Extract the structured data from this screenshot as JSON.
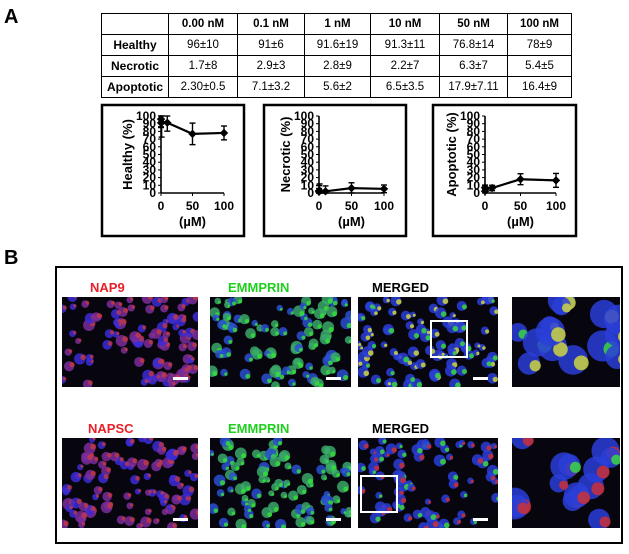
{
  "panel_a": {
    "letter": "A",
    "table": {
      "headers": [
        "",
        "0.00 nM",
        "0.1 nM",
        "1 nM",
        "10 nM",
        "50 nM",
        "100 nM"
      ],
      "rows": [
        {
          "label": "Healthy",
          "cells": [
            "96±10",
            "91±6",
            "91.6±19",
            "91.3±11",
            "76.8±14",
            "78±9"
          ]
        },
        {
          "label": "Necrotic",
          "cells": [
            "1.7±8",
            "2.9±3",
            "2.8±9",
            "2.2±7",
            "6.3±7",
            "5.4±5"
          ]
        },
        {
          "label": "Apoptotic",
          "cells": [
            "2.30±0.5",
            "7.1±3.2",
            "5.6±2",
            "6.5±3.5",
            "17.9±7.11",
            "16.4±9"
          ]
        }
      ]
    }
  },
  "chart_data": [
    {
      "type": "line",
      "ylabel": "Healthy (%)",
      "xlabel": "(µM)",
      "x": [
        0,
        0.1,
        1,
        10,
        50,
        100
      ],
      "y": [
        96,
        91,
        91.6,
        91.3,
        76.8,
        78
      ],
      "err": [
        10,
        6,
        19,
        11,
        14,
        9
      ],
      "xticks": [
        "0",
        "50",
        "100"
      ],
      "yticks": [
        "0",
        "10",
        "20",
        "30",
        "40",
        "50",
        "60",
        "70",
        "80",
        "90",
        "100"
      ],
      "xlim": [
        0,
        100
      ],
      "ylim": [
        0,
        100
      ]
    },
    {
      "type": "line",
      "ylabel": "Necrotic (%)",
      "xlabel": "(µM)",
      "x": [
        0,
        0.1,
        1,
        10,
        50,
        100
      ],
      "y": [
        1.7,
        2.9,
        2.8,
        2.2,
        6.3,
        5.4
      ],
      "err": [
        8,
        3,
        9,
        7,
        7,
        5
      ],
      "xticks": [
        "0",
        "50",
        "100"
      ],
      "yticks": [
        "0",
        "10",
        "20",
        "30",
        "40",
        "50",
        "60",
        "70",
        "80",
        "90",
        "100"
      ],
      "xlim": [
        0,
        100
      ],
      "ylim": [
        0,
        100
      ]
    },
    {
      "type": "line",
      "ylabel": "Apoptotic (%)",
      "xlabel": "(µM)",
      "x": [
        0,
        0.1,
        1,
        10,
        50,
        100
      ],
      "y": [
        2.3,
        7.1,
        5.6,
        6.5,
        17.9,
        16.4
      ],
      "err": [
        0.5,
        3.2,
        2,
        3.5,
        7.11,
        9
      ],
      "xticks": [
        "0",
        "50",
        "100"
      ],
      "yticks": [
        "0",
        "10",
        "20",
        "30",
        "40",
        "50",
        "60",
        "70",
        "80",
        "90",
        "100"
      ],
      "xlim": [
        0,
        100
      ],
      "ylim": [
        0,
        100
      ]
    }
  ],
  "panel_b": {
    "letter": "B",
    "rows": [
      {
        "images": [
          {
            "label": "NAP9",
            "color": "#e8202a",
            "stain": "red"
          },
          {
            "label": "EMMPRIN",
            "color": "#1fd01f",
            "stain": "green"
          },
          {
            "label": "MERGED",
            "color": "#000000",
            "stain": "merged"
          },
          {
            "label": "",
            "color": "#000000",
            "stain": "zoom"
          }
        ]
      },
      {
        "images": [
          {
            "label": "NAPSC",
            "color": "#e8202a",
            "stain": "red"
          },
          {
            "label": "EMMPRIN",
            "color": "#1fd01f",
            "stain": "green"
          },
          {
            "label": "MERGED",
            "color": "#000000",
            "stain": "merged-sparse"
          },
          {
            "label": "",
            "color": "#000000",
            "stain": "zoom-sparse"
          }
        ]
      }
    ]
  }
}
